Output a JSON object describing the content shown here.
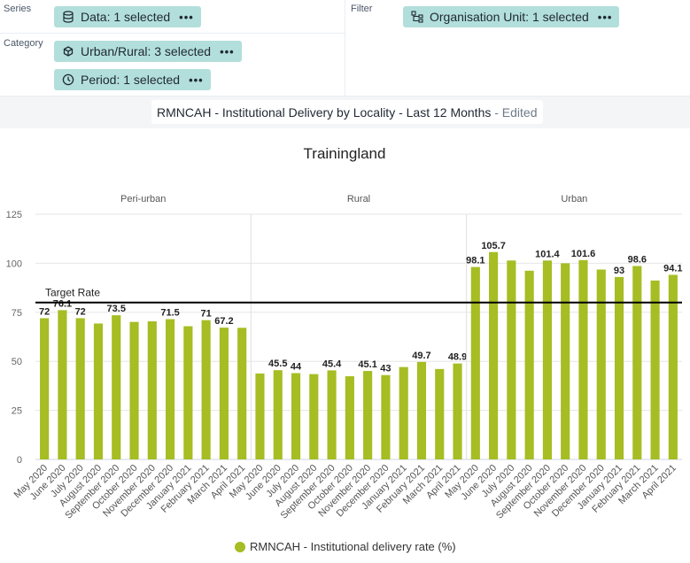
{
  "layout_panel": {
    "series_label": "Series",
    "category_label": "Category",
    "filter_label": "Filter",
    "data_chip": "Data: 1 selected",
    "urban_rural_chip": "Urban/Rural: 3 selected",
    "period_chip": "Period: 1 selected",
    "org_unit_chip": "Organisation Unit: 1 selected",
    "more_glyph": "•••"
  },
  "visualization": {
    "name": "RMNCAH - Institutional Delivery by Locality - Last 12 Months",
    "edited": "- Edited"
  },
  "colors": {
    "bar": "#a6bd23",
    "target_line": "#000000",
    "chip_bg": "#b2dfdb"
  },
  "chart_data": {
    "type": "bar",
    "title": "Trainingland",
    "ylim": [
      0,
      125
    ],
    "yticks": [
      0,
      25,
      50,
      75,
      100,
      125
    ],
    "grid": true,
    "legend_position": "bottom",
    "target_line": {
      "label": "Target Rate",
      "value": 80
    },
    "categories": [
      "May 2020",
      "June 2020",
      "July 2020",
      "August 2020",
      "September 2020",
      "October 2020",
      "November 2020",
      "December 2020",
      "January 2021",
      "February 2021",
      "March 2021",
      "April 2021"
    ],
    "groups": [
      {
        "name": "Peri-urban",
        "values": [
          72,
          76.1,
          72,
          69.3,
          73.5,
          70.1,
          70.4,
          71.5,
          67.9,
          71,
          67.2,
          67.1
        ],
        "labels": [
          "72",
          "76.1",
          "72",
          "",
          "73.5",
          "",
          "",
          "71.5",
          "",
          "71",
          "67.2",
          ""
        ]
      },
      {
        "name": "Rural",
        "values": [
          43.8,
          45.5,
          44,
          43.5,
          45.4,
          42.4,
          45.1,
          43,
          47.1,
          49.7,
          46.1,
          48.9
        ],
        "labels": [
          "",
          "45.5",
          "44",
          "",
          "45.4",
          "",
          "45.1",
          "43",
          "",
          "49.7",
          "",
          "48.9"
        ]
      },
      {
        "name": "Urban",
        "values": [
          98.1,
          105.7,
          101.4,
          96.2,
          101.4,
          100,
          101.6,
          96.8,
          93,
          98.6,
          91.2,
          94.1
        ],
        "labels": [
          "98.1",
          "105.7",
          "",
          "",
          "101.4",
          "",
          "101.6",
          "",
          "93",
          "98.6",
          "",
          "94.1"
        ]
      }
    ],
    "series": [
      {
        "name": "RMNCAH - Institutional delivery rate (%)"
      }
    ]
  }
}
